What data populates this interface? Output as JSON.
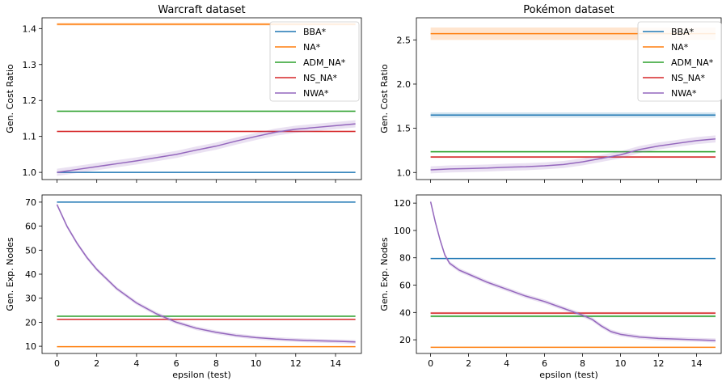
{
  "chart_data": [
    {
      "type": "line",
      "title": "Warcraft dataset",
      "xlabel": "",
      "ylabel": "Gen. Cost Ratio",
      "xlim": [
        -0.75,
        15.3
      ],
      "ylim": [
        0.98,
        1.43
      ],
      "xticks": [
        0,
        2,
        4,
        6,
        8,
        10,
        12,
        14
      ],
      "yticks": [
        1.0,
        1.1,
        1.2,
        1.3,
        1.4
      ],
      "ytick_format": 1,
      "show_xtick_labels": false,
      "legend": "top-right",
      "series": [
        {
          "name": "BBA*",
          "color": "#1f77b4",
          "x": [
            0,
            15
          ],
          "y": [
            1.0,
            1.0
          ],
          "band": 0.0
        },
        {
          "name": "NA*",
          "color": "#ff7f0e",
          "x": [
            0,
            15
          ],
          "y": [
            1.412,
            1.412
          ],
          "band": 0.004
        },
        {
          "name": "ADM_NA*",
          "color": "#2ca02c",
          "x": [
            0,
            15
          ],
          "y": [
            1.17,
            1.17
          ],
          "band": 0.002
        },
        {
          "name": "NS_NA*",
          "color": "#d62728",
          "x": [
            0,
            15
          ],
          "y": [
            1.114,
            1.114
          ],
          "band": 0.002
        },
        {
          "name": "NWA*",
          "color": "#9467bd",
          "x": [
            0,
            1,
            2,
            3,
            4,
            5,
            6,
            7,
            8,
            9,
            10,
            11,
            12,
            13,
            14,
            15
          ],
          "y": [
            1.0,
            1.008,
            1.016,
            1.024,
            1.032,
            1.041,
            1.05,
            1.062,
            1.073,
            1.087,
            1.1,
            1.112,
            1.12,
            1.125,
            1.13,
            1.135
          ],
          "band": 0.01
        }
      ]
    },
    {
      "type": "line",
      "title": "Pokémon dataset",
      "xlabel": "",
      "ylabel": "Gen. Cost Ratio",
      "xlim": [
        -0.75,
        15.3
      ],
      "ylim": [
        0.92,
        2.75
      ],
      "xticks": [
        0,
        2,
        4,
        6,
        8,
        10,
        12,
        14
      ],
      "yticks": [
        1.0,
        1.5,
        2.0,
        2.5
      ],
      "ytick_format": 1,
      "show_xtick_labels": false,
      "legend": "top-right",
      "series": [
        {
          "name": "BBA*",
          "color": "#1f77b4",
          "x": [
            0,
            15
          ],
          "y": [
            1.65,
            1.65
          ],
          "band": 0.03
        },
        {
          "name": "NA*",
          "color": "#ff7f0e",
          "x": [
            0,
            15
          ],
          "y": [
            2.57,
            2.57
          ],
          "band": 0.07
        },
        {
          "name": "ADM_NA*",
          "color": "#2ca02c",
          "x": [
            0,
            15
          ],
          "y": [
            1.235,
            1.235
          ],
          "band": 0.01
        },
        {
          "name": "NS_NA*",
          "color": "#d62728",
          "x": [
            0,
            15
          ],
          "y": [
            1.175,
            1.175
          ],
          "band": 0.01
        },
        {
          "name": "NWA*",
          "color": "#9467bd",
          "x": [
            0,
            1,
            2,
            3,
            4,
            5,
            6,
            7,
            8,
            9,
            10,
            11,
            12,
            13,
            14,
            15
          ],
          "y": [
            1.03,
            1.04,
            1.045,
            1.05,
            1.06,
            1.065,
            1.075,
            1.09,
            1.12,
            1.16,
            1.2,
            1.26,
            1.3,
            1.33,
            1.36,
            1.38
          ],
          "band": 0.04
        }
      ]
    },
    {
      "type": "line",
      "title": "",
      "xlabel": "epsilon (test)",
      "ylabel": "Gen. Exp. Nodes",
      "xlim": [
        -0.75,
        15.3
      ],
      "ylim": [
        7,
        73
      ],
      "xticks": [
        0,
        2,
        4,
        6,
        8,
        10,
        12,
        14
      ],
      "yticks": [
        10,
        20,
        30,
        40,
        50,
        60,
        70
      ],
      "ytick_format": 0,
      "show_xtick_labels": true,
      "legend": "none",
      "series": [
        {
          "name": "BBA*",
          "color": "#1f77b4",
          "x": [
            0,
            15
          ],
          "y": [
            70,
            70
          ],
          "band": 0.2
        },
        {
          "name": "NA*",
          "color": "#ff7f0e",
          "x": [
            0,
            15
          ],
          "y": [
            9.8,
            9.8
          ],
          "band": 0.1
        },
        {
          "name": "ADM_NA*",
          "color": "#2ca02c",
          "x": [
            0,
            15
          ],
          "y": [
            22.5,
            22.5
          ],
          "band": 0.2
        },
        {
          "name": "NS_NA*",
          "color": "#d62728",
          "x": [
            0,
            15
          ],
          "y": [
            21.2,
            21.2
          ],
          "band": 0.2
        },
        {
          "name": "NWA*",
          "color": "#9467bd",
          "x": [
            0,
            0.5,
            1,
            1.5,
            2,
            3,
            4,
            5,
            6,
            7,
            8,
            9,
            10,
            11,
            12,
            13,
            14,
            15
          ],
          "y": [
            69,
            60,
            53,
            47,
            42,
            34,
            28,
            23.5,
            20,
            17.5,
            15.8,
            14.5,
            13.6,
            13,
            12.6,
            12.3,
            12.1,
            11.8
          ],
          "band": 0.8
        }
      ]
    },
    {
      "type": "line",
      "title": "",
      "xlabel": "epsilon (test)",
      "ylabel": "Gen. Exp. Nodes",
      "xlim": [
        -0.75,
        15.3
      ],
      "ylim": [
        10,
        126
      ],
      "xticks": [
        0,
        2,
        4,
        6,
        8,
        10,
        12,
        14
      ],
      "yticks": [
        20,
        40,
        60,
        80,
        100,
        120
      ],
      "ytick_format": 0,
      "show_xtick_labels": true,
      "legend": "none",
      "series": [
        {
          "name": "BBA*",
          "color": "#1f77b4",
          "x": [
            0,
            15
          ],
          "y": [
            79.5,
            79.5
          ],
          "band": 0.3
        },
        {
          "name": "NA*",
          "color": "#ff7f0e",
          "x": [
            0,
            15
          ],
          "y": [
            14.5,
            14.5
          ],
          "band": 0.2
        },
        {
          "name": "ADM_NA*",
          "color": "#2ca02c",
          "x": [
            0,
            15
          ],
          "y": [
            37.2,
            37.2
          ],
          "band": 0.8
        },
        {
          "name": "NS_NA*",
          "color": "#d62728",
          "x": [
            0,
            15
          ],
          "y": [
            39.5,
            39.5
          ],
          "band": 0.8
        },
        {
          "name": "NWA*",
          "color": "#9467bd",
          "x": [
            0,
            0.25,
            0.5,
            0.75,
            1,
            1.5,
            2,
            3,
            4,
            5,
            6,
            7,
            8,
            8.5,
            9,
            9.5,
            10,
            11,
            12,
            13,
            14,
            15
          ],
          "y": [
            121,
            106,
            93,
            82,
            76,
            71,
            68,
            62,
            57,
            52,
            48,
            43,
            38,
            35,
            30,
            26,
            24,
            22,
            21,
            20.5,
            20,
            19.5
          ],
          "band": 1.5
        }
      ]
    }
  ]
}
